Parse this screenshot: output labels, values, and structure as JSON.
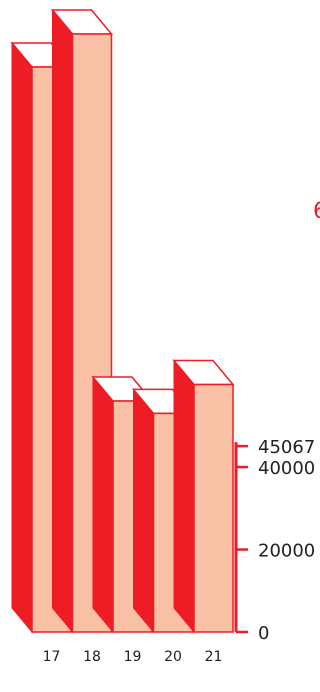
{
  "chart_data": {
    "type": "bar",
    "categories": [
      "17",
      "18",
      "19",
      "20",
      "21"
    ],
    "values": [
      137000,
      145000,
      56000,
      53000,
      60000
    ],
    "yticks": [
      0,
      20000,
      40000,
      45067
    ],
    "ylim": [
      0,
      145000
    ],
    "grid": false,
    "colors": {
      "bar_front": "#f8c0a4",
      "bar_side": "#ee1c25",
      "bar_top": "#ffffff",
      "outline": "#ee1c25",
      "axis": "#ee1c25"
    }
  },
  "cutoff_text": "6"
}
